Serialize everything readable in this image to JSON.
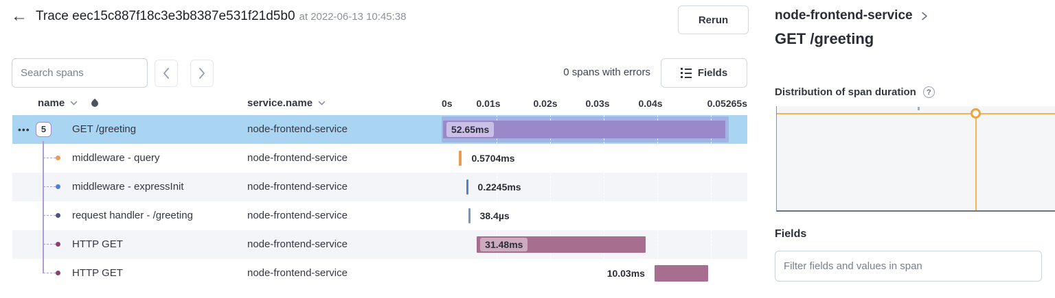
{
  "icons": {
    "back": "←",
    "row_menu": "•••",
    "help": "?"
  },
  "header": {
    "title": "Trace eec15c887f18c3e3b8387e531f21d5b0",
    "timestamp_label": "at 2022-06-13 10:45:38",
    "rerun_label": "Rerun"
  },
  "toolbar": {
    "search_placeholder": "Search spans",
    "errors_summary": "0 spans with errors",
    "fields_button_label": "Fields"
  },
  "table": {
    "name_column": "name",
    "service_column": "service.name",
    "ticks": [
      "0s",
      "0.01s",
      "0.02s",
      "0.03s",
      "0.04s",
      "0.05265s"
    ]
  },
  "spans": [
    {
      "name": "GET /greeting",
      "service": "node-frontend-service",
      "duration_label": "52.65ms",
      "start_ms": 0,
      "duration_ms": 52.65,
      "color": "#9989ca",
      "label_side": "inside",
      "label_bg": "#cbbfe8",
      "child_count": "5",
      "selected": true,
      "depth": 0
    },
    {
      "name": "middleware - query",
      "service": "node-frontend-service",
      "duration_label": "0.5704ms",
      "start_ms": 2.95,
      "duration_ms": 0.5704,
      "color": "#eb9b50",
      "dot_color": "#eb9b50",
      "label_side": "right",
      "depth": 1
    },
    {
      "name": "middleware - expressInit",
      "service": "node-frontend-service",
      "duration_label": "0.2245ms",
      "start_ms": 4.36,
      "duration_ms": 0.2245,
      "color": "#4e80d3",
      "dot_color": "#4e80d3",
      "label_side": "right",
      "depth": 1
    },
    {
      "name": "request handler - /greeting",
      "service": "node-frontend-service",
      "duration_label": "38.4µs",
      "start_ms": 4.75,
      "duration_ms": 0.0384,
      "color": "#8194ab",
      "dot_color": "#47557e",
      "label_side": "right",
      "depth": 1
    },
    {
      "name": "HTTP GET",
      "service": "node-frontend-service",
      "duration_label": "31.48ms",
      "start_ms": 6.3,
      "duration_ms": 31.48,
      "color": "#a76e90",
      "dot_color": "#8a4368",
      "label_side": "inside",
      "label_bg": "rgba(255,255,255,0.42)",
      "depth": 1
    },
    {
      "name": "HTTP GET",
      "service": "node-frontend-service",
      "duration_label": "10.03ms",
      "start_ms": 39.45,
      "duration_ms": 10.03,
      "color": "#a76e90",
      "dot_color": "#8a4368",
      "label_side": "left",
      "depth": 1
    }
  ],
  "details_panel": {
    "breadcrumb_service": "node-frontend-service",
    "span_title": "GET /greeting",
    "distribution_title": "Distribution of span duration",
    "distribution_marker_at": "52.65ms",
    "fields_title": "Fields",
    "filter_placeholder": "Filter fields and values in span"
  }
}
